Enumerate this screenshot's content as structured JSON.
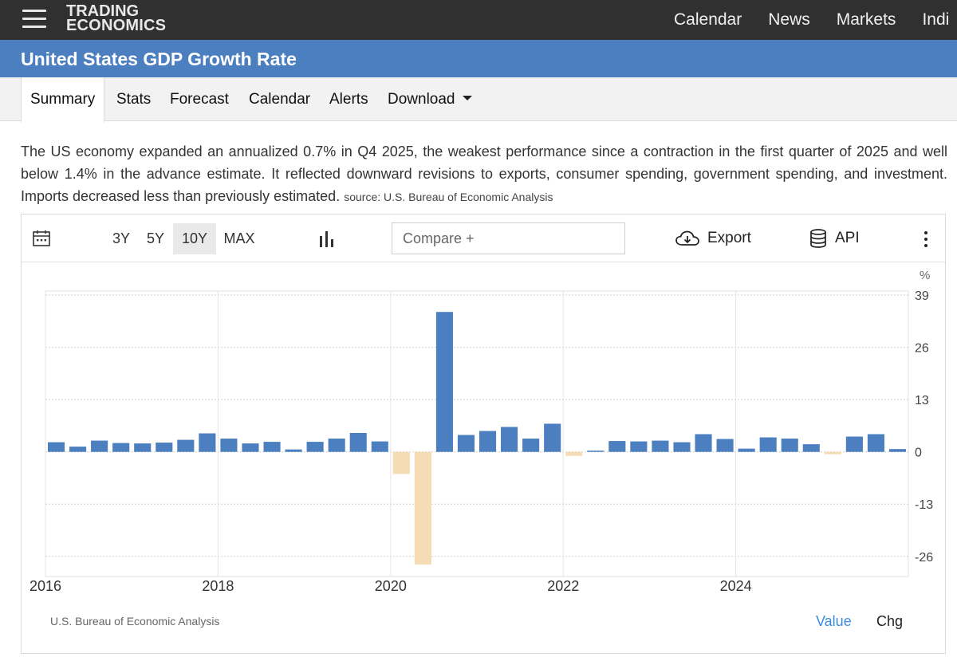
{
  "topbar": {
    "logo_line1": "TRADING",
    "logo_line2": "ECONOMICS",
    "nav": [
      "Calendar",
      "News",
      "Markets",
      "Indi"
    ]
  },
  "title": "United States GDP Growth Rate",
  "tabs": {
    "summary": "Summary",
    "stats": "Stats",
    "forecast": "Forecast",
    "calendar": "Calendar",
    "alerts": "Alerts",
    "download": "Download"
  },
  "description": {
    "text": "The US economy expanded an annualized 0.7% in Q4 2025, the weakest performance since a contraction in the first quarter of 2025 and well below 1.4% in the advance estimate. It reflected downward revisions to exports, consumer spending, government spending, and investment. Imports decreased less than previously estimated.",
    "source": "source: U.S. Bureau of Economic Analysis"
  },
  "toolbar": {
    "ranges": [
      "3Y",
      "5Y",
      "10Y",
      "MAX"
    ],
    "selected_range": "10Y",
    "compare_placeholder": "Compare +",
    "export_label": "Export",
    "api_label": "API"
  },
  "chart_data": {
    "type": "bar",
    "unit_label": "%",
    "y_ticks": [
      39,
      26,
      13,
      0,
      -13,
      -26
    ],
    "ylim": [
      -31,
      40
    ],
    "x_ticks": [
      "2016",
      "2018",
      "2020",
      "2022",
      "2024"
    ],
    "x_start": 2016.0,
    "x_end": 2026.0,
    "grid": true,
    "positive_color": "#4b7fc0",
    "negative_color": "#f5dcb4",
    "series": [
      {
        "x": [
          "2016 Q1",
          "2016 Q2",
          "2016 Q3",
          "2016 Q4",
          "2017 Q1",
          "2017 Q2",
          "2017 Q3",
          "2017 Q4",
          "2018 Q1",
          "2018 Q2",
          "2018 Q3",
          "2018 Q4",
          "2019 Q1",
          "2019 Q2",
          "2019 Q3",
          "2019 Q4",
          "2020 Q1",
          "2020 Q2",
          "2020 Q3",
          "2020 Q4",
          "2021 Q1",
          "2021 Q2",
          "2021 Q3",
          "2021 Q4",
          "2022 Q1",
          "2022 Q2",
          "2022 Q3",
          "2022 Q4",
          "2023 Q1",
          "2023 Q2",
          "2023 Q3",
          "2023 Q4",
          "2024 Q1",
          "2024 Q2",
          "2024 Q3",
          "2024 Q4",
          "2025 Q1",
          "2025 Q2",
          "2025 Q3",
          "2025 Q4"
        ],
        "values": [
          2.4,
          1.3,
          2.8,
          2.2,
          2.1,
          2.3,
          3.0,
          4.6,
          3.3,
          2.1,
          2.5,
          0.6,
          2.5,
          3.3,
          4.7,
          2.6,
          -5.5,
          -28.0,
          34.8,
          4.2,
          5.2,
          6.2,
          3.3,
          7.0,
          -1.0,
          0.3,
          2.7,
          2.6,
          2.8,
          2.4,
          4.4,
          3.2,
          0.8,
          3.6,
          3.3,
          1.9,
          -0.6,
          3.8,
          4.4,
          0.7
        ]
      }
    ]
  },
  "chart_footer": {
    "source": "U.S. Bureau of Economic Analysis",
    "value_label": "Value",
    "chg_label": "Chg",
    "value_color": "#3c8dde"
  }
}
